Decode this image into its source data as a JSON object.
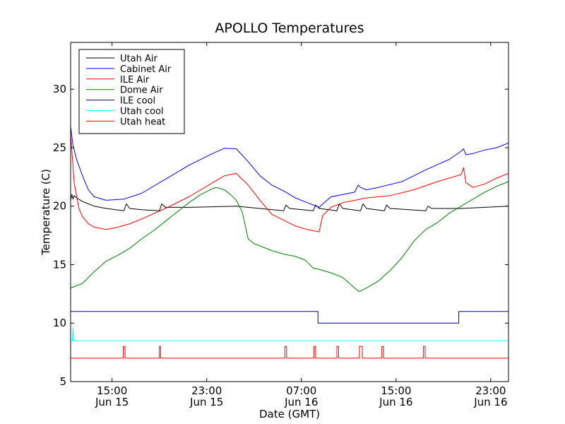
{
  "chart_data": {
    "type": "line",
    "title": "APOLLO Temperatures",
    "xlabel": "Date (GMT)",
    "ylabel": "Temperature (C)",
    "x_units": "hours since Jun 15 11:30 GMT",
    "xlim": [
      0,
      37
    ],
    "ylim": [
      5,
      34
    ],
    "y_ticks": [
      5,
      10,
      15,
      20,
      25,
      30
    ],
    "x_ticks": [
      {
        "x": 3.5,
        "line1": "15:00",
        "line2": "Jun 15"
      },
      {
        "x": 11.5,
        "line1": "23:00",
        "line2": "Jun 15"
      },
      {
        "x": 19.5,
        "line1": "07:00",
        "line2": "Jun 16"
      },
      {
        "x": 27.5,
        "line1": "15:00",
        "line2": "Jun 16"
      },
      {
        "x": 35.5,
        "line1": "23:00",
        "line2": "Jun 16"
      }
    ],
    "legend_position": "top-left",
    "series": [
      {
        "name": "Utah Air",
        "color": "#000000",
        "points": [
          [
            0,
            20.5
          ],
          [
            0.1,
            21
          ],
          [
            0.2,
            20.6
          ],
          [
            0.3,
            20.9
          ],
          [
            0.5,
            20.7
          ],
          [
            1,
            20.4
          ],
          [
            2,
            20
          ],
          [
            3,
            19.8
          ],
          [
            4.5,
            19.6
          ],
          [
            4.7,
            20.2
          ],
          [
            5,
            19.8
          ],
          [
            6,
            19.7
          ],
          [
            7.5,
            19.6
          ],
          [
            7.7,
            20.2
          ],
          [
            8,
            19.9
          ],
          [
            10,
            19.9
          ],
          [
            12,
            19.95
          ],
          [
            14,
            20
          ],
          [
            16,
            19.8
          ],
          [
            18,
            19.6
          ],
          [
            18.2,
            20.1
          ],
          [
            18.5,
            19.8
          ],
          [
            20.5,
            19.6
          ],
          [
            20.7,
            20.1
          ],
          [
            21,
            19.8
          ],
          [
            22.5,
            19.6
          ],
          [
            22.7,
            20.2
          ],
          [
            23,
            19.8
          ],
          [
            24.5,
            19.6
          ],
          [
            24.7,
            20.2
          ],
          [
            25,
            19.8
          ],
          [
            26.5,
            19.6
          ],
          [
            26.7,
            20.1
          ],
          [
            27,
            19.8
          ],
          [
            30,
            19.6
          ],
          [
            30.2,
            20
          ],
          [
            30.5,
            19.8
          ],
          [
            33,
            19.8
          ],
          [
            37,
            20
          ]
        ]
      },
      {
        "name": "Cabinet Air",
        "color": "#0000ff",
        "points": [
          [
            0,
            26.8
          ],
          [
            0.2,
            25.2
          ],
          [
            0.5,
            24
          ],
          [
            1,
            22.6
          ],
          [
            1.5,
            21.4
          ],
          [
            2,
            20.8
          ],
          [
            3,
            20.5
          ],
          [
            4.5,
            20.6
          ],
          [
            6,
            21.1
          ],
          [
            8,
            22.3
          ],
          [
            10,
            23.5
          ],
          [
            12,
            24.5
          ],
          [
            13,
            24.95
          ],
          [
            14,
            24.9
          ],
          [
            15,
            23.8
          ],
          [
            16,
            22.6
          ],
          [
            17,
            21.8
          ],
          [
            18,
            21.3
          ],
          [
            19,
            20.7
          ],
          [
            20,
            20.3
          ],
          [
            21,
            19.9
          ],
          [
            21.2,
            20.1
          ],
          [
            22,
            20.8
          ],
          [
            23,
            21
          ],
          [
            24,
            21.2
          ],
          [
            24.3,
            21.8
          ],
          [
            24.5,
            21.6
          ],
          [
            25,
            21.4
          ],
          [
            26,
            21.6
          ],
          [
            28,
            22.1
          ],
          [
            30,
            23.1
          ],
          [
            32,
            24
          ],
          [
            33,
            24.7
          ],
          [
            33.2,
            24.9
          ],
          [
            33.4,
            24.4
          ],
          [
            34,
            24.5
          ],
          [
            35,
            24.8
          ],
          [
            36,
            25
          ],
          [
            37,
            25.4
          ]
        ]
      },
      {
        "name": "ILE Air",
        "color": "#ff0000",
        "points": [
          [
            0,
            26.2
          ],
          [
            0.3,
            22
          ],
          [
            0.7,
            19.8
          ],
          [
            1,
            19.1
          ],
          [
            1.5,
            18.5
          ],
          [
            2,
            18.2
          ],
          [
            3,
            18
          ],
          [
            4,
            18.2
          ],
          [
            5,
            18.5
          ],
          [
            6,
            18.9
          ],
          [
            8,
            19.8
          ],
          [
            10,
            20.8
          ],
          [
            12,
            22
          ],
          [
            13,
            22.6
          ],
          [
            14,
            22.8
          ],
          [
            15,
            21.8
          ],
          [
            16,
            20.5
          ],
          [
            17,
            19.3
          ],
          [
            18,
            18.8
          ],
          [
            19,
            18.3
          ],
          [
            20,
            18
          ],
          [
            21,
            17.8
          ],
          [
            21.3,
            19.2
          ],
          [
            22,
            19.9
          ],
          [
            23,
            20.3
          ],
          [
            25,
            20.7
          ],
          [
            27,
            20.9
          ],
          [
            29,
            21.4
          ],
          [
            31,
            22.1
          ],
          [
            33,
            22.7
          ],
          [
            33.2,
            23.3
          ],
          [
            33.4,
            22
          ],
          [
            34,
            21.6
          ],
          [
            35,
            21.9
          ],
          [
            36,
            22.4
          ],
          [
            37,
            22.8
          ]
        ]
      },
      {
        "name": "Dome Air",
        "color": "#008000",
        "points": [
          [
            0,
            13
          ],
          [
            1,
            13.4
          ],
          [
            2,
            14.4
          ],
          [
            3,
            15.3
          ],
          [
            4,
            15.8
          ],
          [
            5,
            16.4
          ],
          [
            6,
            17.2
          ],
          [
            7,
            17.9
          ],
          [
            8,
            18.7
          ],
          [
            9,
            19.5
          ],
          [
            10,
            20.3
          ],
          [
            11,
            21
          ],
          [
            12,
            21.5
          ],
          [
            12.3,
            21.6
          ],
          [
            13,
            21.4
          ],
          [
            13.5,
            21
          ],
          [
            14,
            20.5
          ],
          [
            14.5,
            19.5
          ],
          [
            15,
            17.2
          ],
          [
            15.5,
            16.8
          ],
          [
            16,
            16.6
          ],
          [
            17,
            16.2
          ],
          [
            18,
            15.9
          ],
          [
            19,
            15.7
          ],
          [
            19.8,
            15.4
          ],
          [
            20,
            15.2
          ],
          [
            20.5,
            14.7
          ],
          [
            21,
            14.6
          ],
          [
            22,
            14.3
          ],
          [
            23,
            13.9
          ],
          [
            24,
            13
          ],
          [
            24.4,
            12.7
          ],
          [
            25,
            13
          ],
          [
            26,
            13.6
          ],
          [
            27,
            14.5
          ],
          [
            28,
            15.6
          ],
          [
            29,
            17
          ],
          [
            30,
            18
          ],
          [
            31,
            18.6
          ],
          [
            32,
            19.4
          ],
          [
            33,
            20
          ],
          [
            34,
            20.6
          ],
          [
            35,
            21.2
          ],
          [
            36,
            21.7
          ],
          [
            37,
            22.1
          ]
        ]
      },
      {
        "name": "ILE cool",
        "color": "#000080",
        "points": [
          [
            0,
            11
          ],
          [
            20.9,
            11
          ],
          [
            20.9,
            10
          ],
          [
            32.8,
            10
          ],
          [
            32.8,
            11
          ],
          [
            37,
            11
          ]
        ]
      },
      {
        "name": "Utah cool",
        "color": "#00ffff",
        "points": [
          [
            0,
            8.5
          ],
          [
            0.15,
            8.5
          ],
          [
            0.2,
            9.6
          ],
          [
            0.25,
            8.5
          ],
          [
            37,
            8.5
          ]
        ]
      },
      {
        "name": "Utah heat",
        "color": "#ff0000",
        "points": [
          [
            0,
            7
          ],
          [
            4.45,
            7
          ],
          [
            4.45,
            8
          ],
          [
            4.6,
            8
          ],
          [
            4.6,
            7
          ],
          [
            7.5,
            7
          ],
          [
            7.5,
            8
          ],
          [
            7.6,
            8
          ],
          [
            7.6,
            7
          ],
          [
            18.1,
            7
          ],
          [
            18.1,
            8
          ],
          [
            18.25,
            8
          ],
          [
            18.25,
            7
          ],
          [
            20.55,
            7
          ],
          [
            20.55,
            8
          ],
          [
            20.7,
            8
          ],
          [
            20.7,
            7
          ],
          [
            22.5,
            7
          ],
          [
            22.5,
            8
          ],
          [
            22.65,
            8
          ],
          [
            22.65,
            7
          ],
          [
            24.4,
            7
          ],
          [
            24.4,
            8
          ],
          [
            24.65,
            8
          ],
          [
            24.65,
            7
          ],
          [
            26.3,
            7
          ],
          [
            26.3,
            8
          ],
          [
            26.45,
            8
          ],
          [
            26.45,
            7
          ],
          [
            29.8,
            7
          ],
          [
            29.8,
            8
          ],
          [
            29.95,
            8
          ],
          [
            29.95,
            7
          ],
          [
            37,
            7
          ]
        ]
      }
    ]
  }
}
